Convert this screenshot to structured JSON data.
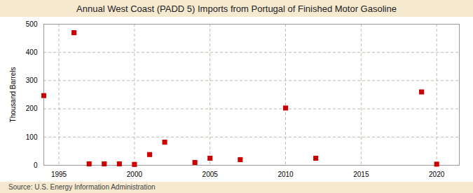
{
  "chart_data": {
    "type": "scatter",
    "title": "Annual West Coast (PADD 5) Imports from Portugal of Finished Motor Gasoline",
    "ylabel": "Thousand Barrels",
    "source": "Source: U.S. Energy Information Administration",
    "x": [
      1994,
      1996,
      1997,
      1998,
      1999,
      2000,
      2001,
      2002,
      2004,
      2005,
      2007,
      2010,
      2012,
      2019,
      2020
    ],
    "values": [
      247,
      470,
      5,
      5,
      5,
      3,
      38,
      82,
      10,
      25,
      20,
      203,
      25,
      260,
      4
    ],
    "color": "#cc0000",
    "marker": "square",
    "xlim": [
      1994,
      2021.5
    ],
    "xticks": [
      1995,
      2000,
      2005,
      2010,
      2015,
      2020
    ],
    "ylim": [
      0,
      500
    ],
    "yticks": [
      0,
      100,
      200,
      300,
      400,
      500
    ],
    "grid": true
  }
}
